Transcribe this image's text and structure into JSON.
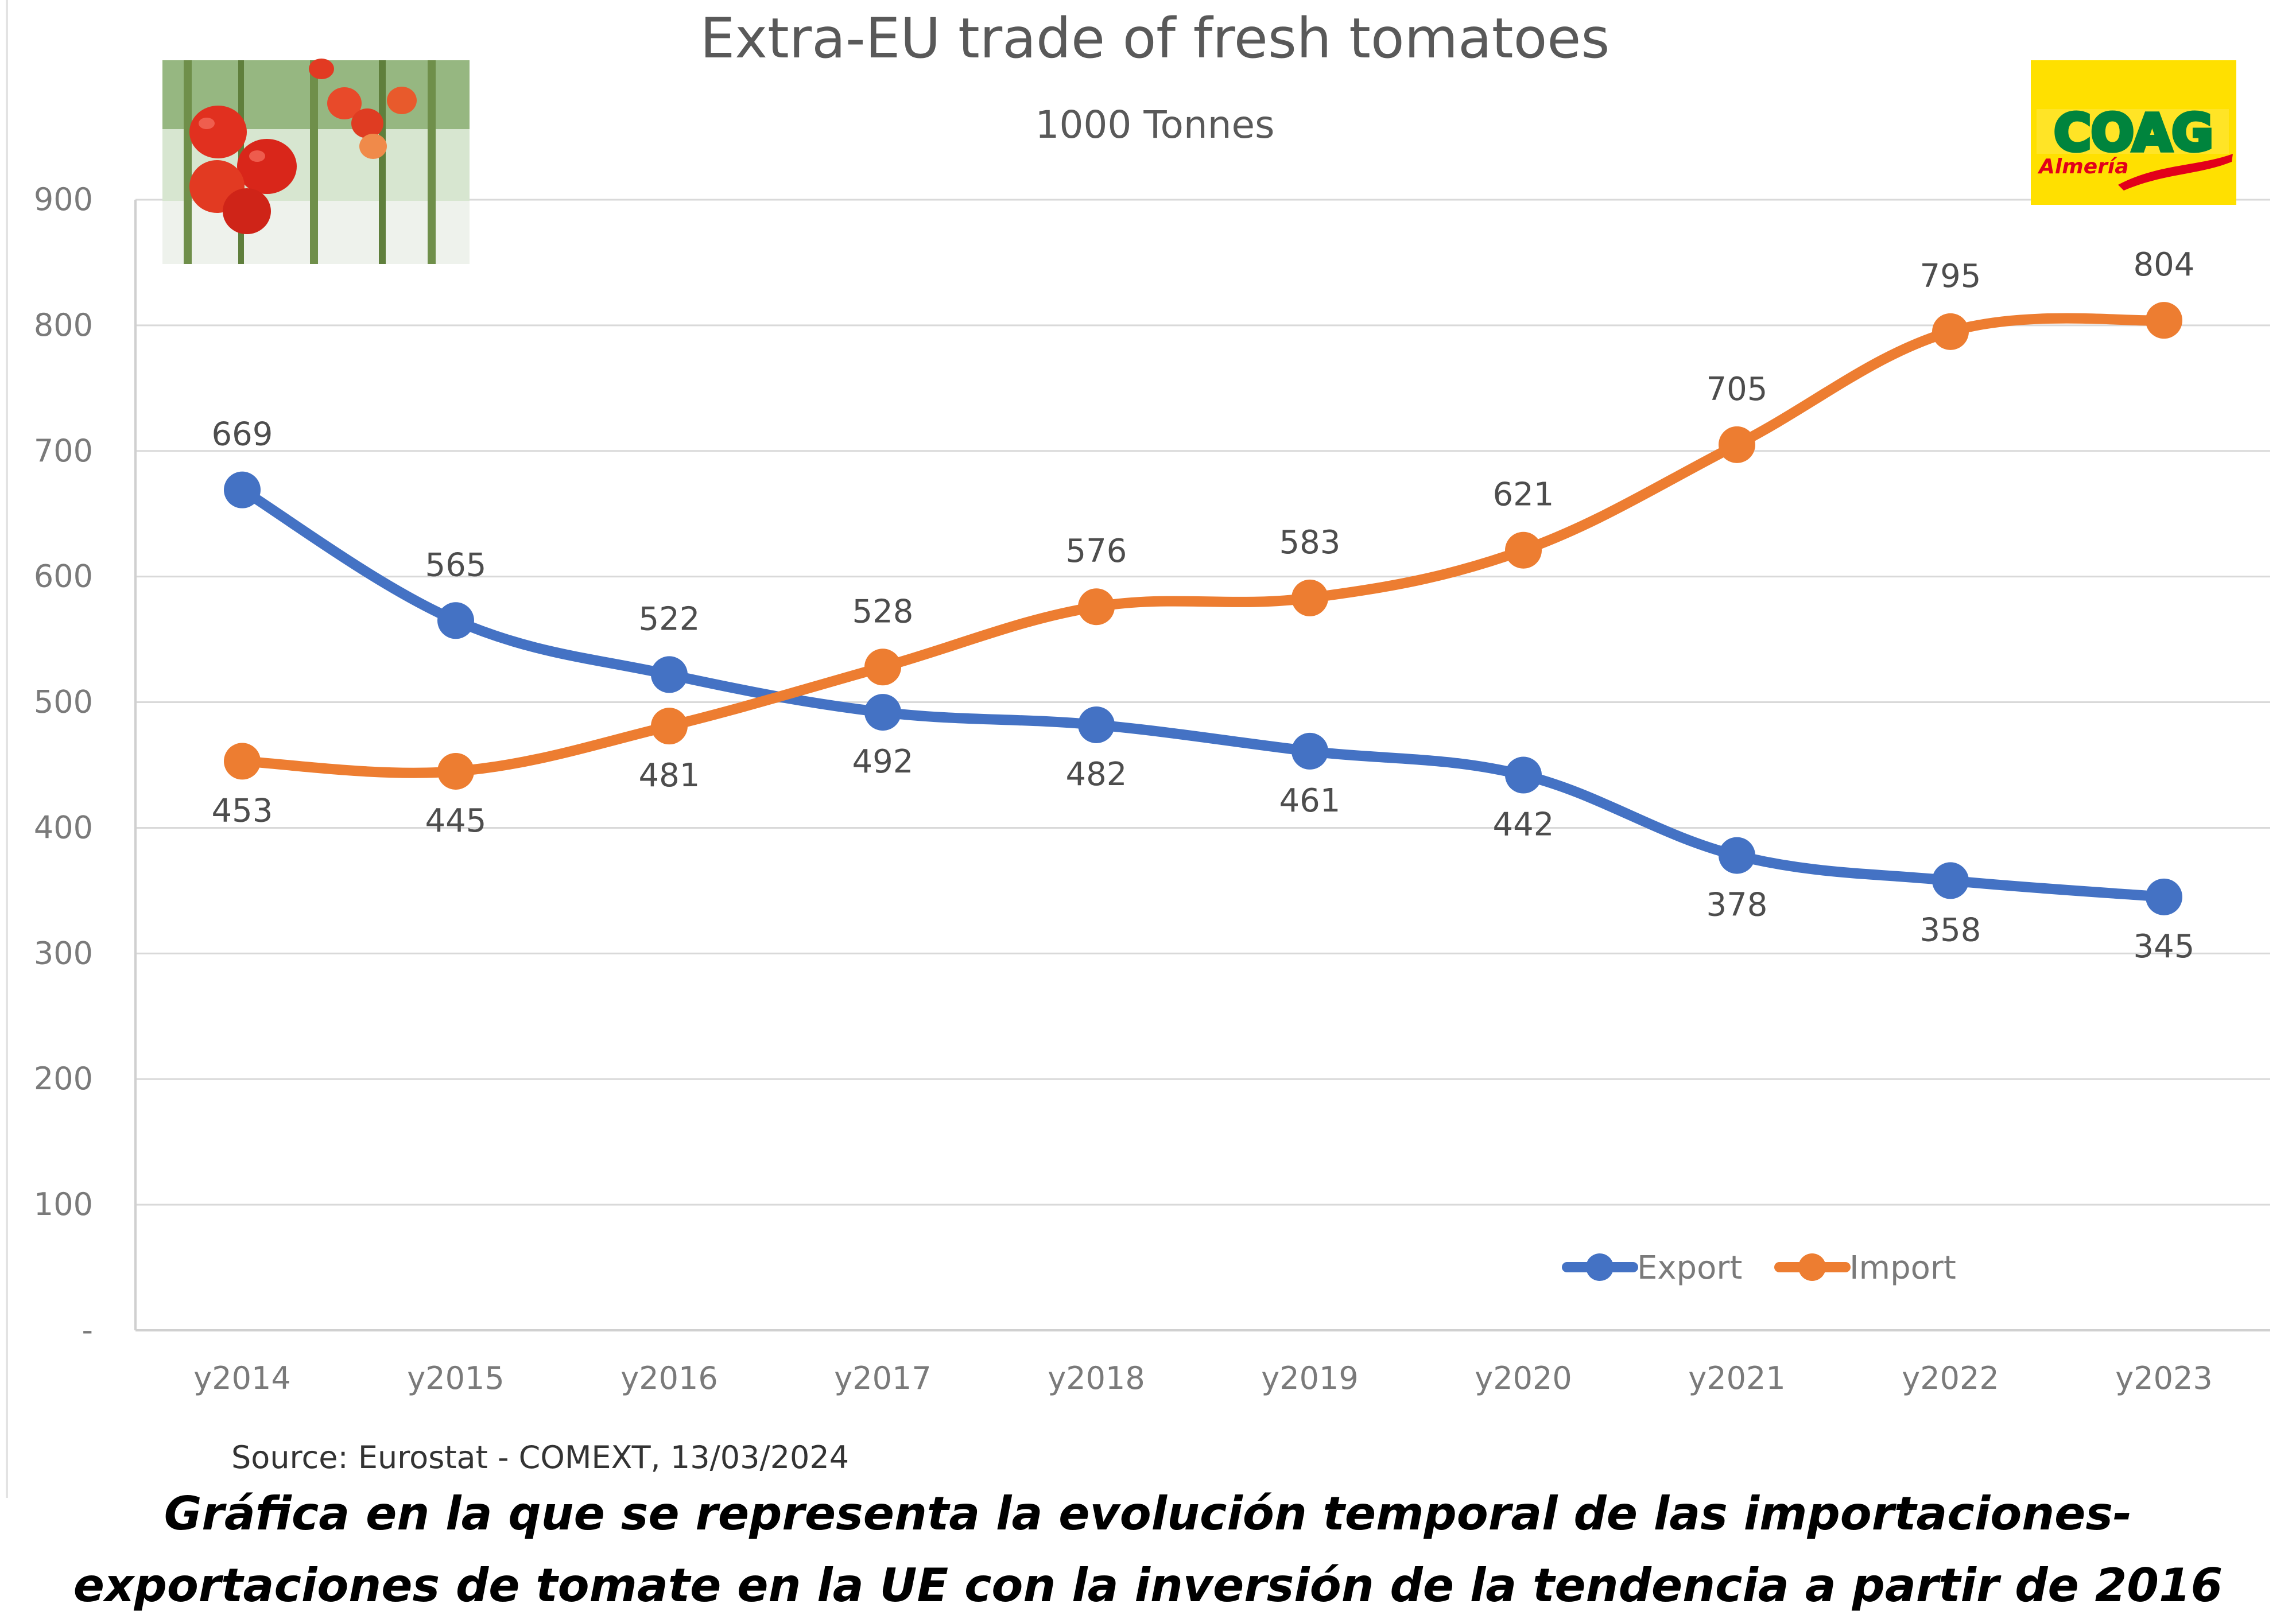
{
  "colors": {
    "export": "#4472C4",
    "import": "#ED7D31",
    "gridline": "#d9d9d9",
    "coag_yellow": "#FFE000",
    "coag_red": "#E2001A",
    "coag_green": "#00843D"
  },
  "source_note": "Source: Eurostat - COMEXT, 13/03/2024",
  "caption": "Gráfica en la que se representa la evolución temporal de las importaciones- exportaciones de tomate en la UE con la inversión de la tendencia a partir de 2016",
  "logo": {
    "text": "COAG",
    "subtext": "Almería"
  },
  "photo": {
    "icon": "tomato-photo"
  },
  "chart_data": {
    "type": "line",
    "title": "Extra-EU trade of fresh tomatoes",
    "subtitle": "1000 Tonnes",
    "categories": [
      "y2014",
      "y2015",
      "y2016",
      "y2017",
      "y2018",
      "y2019",
      "y2020",
      "y2021",
      "y2022",
      "y2023"
    ],
    "y_ticks": [
      "-",
      "100",
      "200",
      "300",
      "400",
      "500",
      "600",
      "700",
      "800",
      "900"
    ],
    "ylim": [
      0,
      900
    ],
    "grid": true,
    "legend": "bottom-right",
    "series": [
      {
        "name": "Export",
        "values": [
          669,
          565,
          522,
          492,
          482,
          461,
          442,
          378,
          358,
          345
        ]
      },
      {
        "name": "Import",
        "values": [
          453,
          445,
          481,
          528,
          576,
          583,
          621,
          705,
          795,
          804
        ]
      }
    ]
  }
}
